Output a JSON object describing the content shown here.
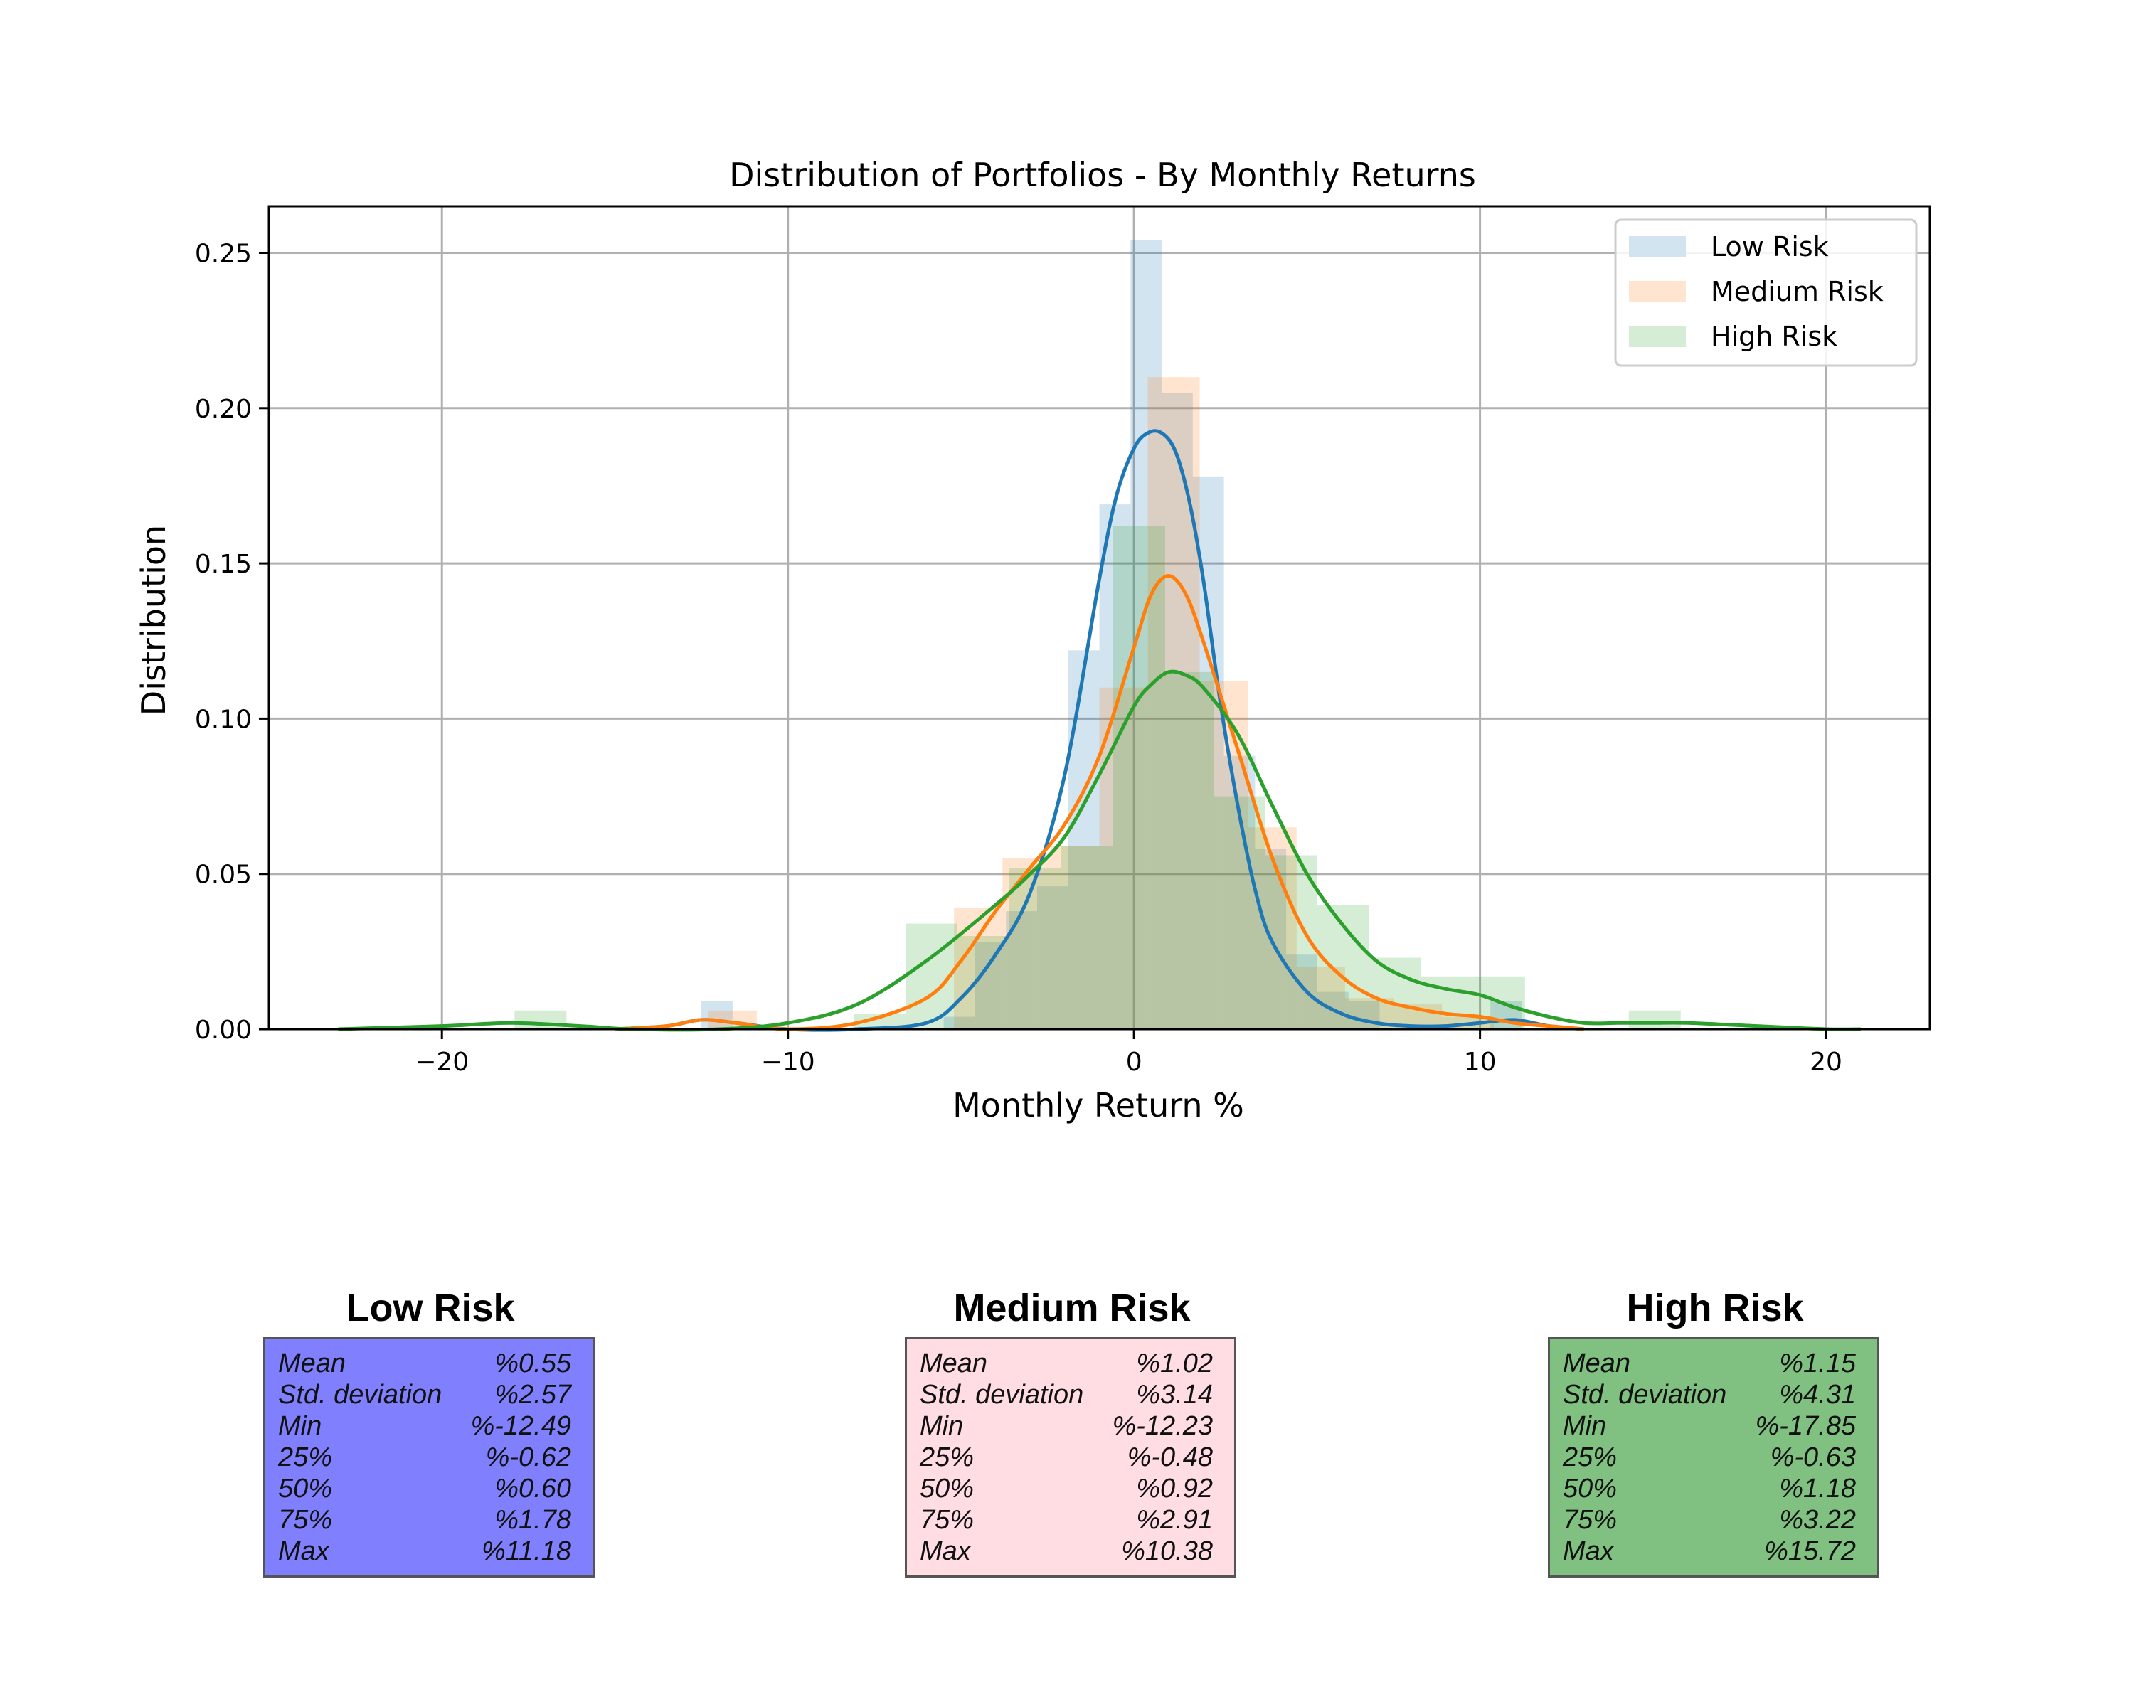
{
  "chart_data": {
    "type": "histogram+kde",
    "title": "Distribution of Portfolios - By Monthly Returns",
    "xlabel": "Monthly Return %",
    "ylabel": "Distribution",
    "xlim": [
      -25,
      23
    ],
    "ylim": [
      0,
      0.265
    ],
    "xticks": [
      -20,
      -10,
      0,
      10,
      20
    ],
    "xtick_labels": [
      "−20",
      "−10",
      "0",
      "10",
      "20"
    ],
    "yticks": [
      0,
      0.05,
      0.1,
      0.15,
      0.2,
      0.25
    ],
    "ytick_labels": [
      "0.00",
      "0.05",
      "0.10",
      "0.15",
      "0.20",
      "0.25"
    ],
    "grid": true,
    "legend_position": "top-right",
    "series": [
      {
        "name": "Low Risk",
        "color": "#1f77b4",
        "bins": [
          [
            -12.5,
            -11.6,
            0.009
          ],
          [
            -5.5,
            -4.6,
            0.004
          ],
          [
            -4.6,
            -3.7,
            0.028
          ],
          [
            -3.7,
            -2.8,
            0.038
          ],
          [
            -2.8,
            -1.9,
            0.046
          ],
          [
            -1.9,
            -1.0,
            0.122
          ],
          [
            -1.0,
            -0.1,
            0.169
          ],
          [
            -0.1,
            0.8,
            0.254
          ],
          [
            0.8,
            1.7,
            0.205
          ],
          [
            1.7,
            2.6,
            0.178
          ],
          [
            2.6,
            3.5,
            0.088
          ],
          [
            3.5,
            4.4,
            0.058
          ],
          [
            4.4,
            5.3,
            0.024
          ],
          [
            5.3,
            6.2,
            0.012
          ],
          [
            6.2,
            7.1,
            0.009
          ],
          [
            10.3,
            11.2,
            0.009
          ]
        ],
        "kde_x": [
          -15,
          -13.5,
          -12.5,
          -11.5,
          -10,
          -8,
          -6,
          -5,
          -4,
          -3,
          -2,
          -1,
          -0.5,
          0,
          0.4,
          0.8,
          1.2,
          1.6,
          2,
          2.5,
          3,
          3.5,
          4,
          5,
          6,
          7,
          8,
          9,
          10,
          11,
          12,
          13
        ],
        "kde_y": [
          0.0,
          0.001,
          0.003,
          0.002,
          0.0,
          0.0,
          0.002,
          0.01,
          0.024,
          0.044,
          0.082,
          0.145,
          0.172,
          0.187,
          0.192,
          0.192,
          0.186,
          0.17,
          0.145,
          0.105,
          0.072,
          0.045,
          0.028,
          0.012,
          0.005,
          0.002,
          0.001,
          0.001,
          0.002,
          0.003,
          0.001,
          0.0
        ]
      },
      {
        "name": "Medium Risk",
        "color": "#ff7f0e",
        "bins": [
          [
            -12.3,
            -10.9,
            0.006
          ],
          [
            -5.2,
            -3.8,
            0.039
          ],
          [
            -3.8,
            -2.4,
            0.055
          ],
          [
            -2.4,
            -1.0,
            0.059
          ],
          [
            -1.0,
            0.4,
            0.11
          ],
          [
            0.4,
            1.9,
            0.21
          ],
          [
            1.9,
            3.3,
            0.112
          ],
          [
            3.3,
            4.7,
            0.065
          ],
          [
            4.7,
            6.1,
            0.02
          ],
          [
            6.1,
            7.5,
            0.01
          ],
          [
            7.5,
            8.9,
            0.008
          ],
          [
            8.9,
            10.4,
            0.004
          ]
        ],
        "kde_x": [
          -15,
          -13.5,
          -12.5,
          -11.5,
          -10,
          -8,
          -6,
          -5,
          -4,
          -3,
          -2,
          -1,
          0,
          0.5,
          1,
          1.5,
          2,
          3,
          4,
          5,
          6,
          7,
          8,
          9,
          10,
          11,
          12,
          13
        ],
        "kde_y": [
          0.0,
          0.001,
          0.003,
          0.002,
          0.0,
          0.002,
          0.01,
          0.022,
          0.038,
          0.052,
          0.066,
          0.088,
          0.123,
          0.14,
          0.146,
          0.14,
          0.125,
          0.09,
          0.055,
          0.03,
          0.017,
          0.01,
          0.007,
          0.005,
          0.004,
          0.002,
          0.001,
          0.0
        ]
      },
      {
        "name": "High Risk",
        "color": "#2ca02c",
        "bins": [
          [
            -17.9,
            -16.4,
            0.006
          ],
          [
            -8.1,
            -6.6,
            0.005
          ],
          [
            -6.6,
            -5.1,
            0.034
          ],
          [
            -5.1,
            -3.6,
            0.03
          ],
          [
            -3.6,
            -2.1,
            0.052
          ],
          [
            -2.1,
            -0.6,
            0.059
          ],
          [
            -0.6,
            0.9,
            0.162
          ],
          [
            0.9,
            2.3,
            0.115
          ],
          [
            2.3,
            3.8,
            0.075
          ],
          [
            3.8,
            5.3,
            0.056
          ],
          [
            5.3,
            6.8,
            0.04
          ],
          [
            6.8,
            8.3,
            0.023
          ],
          [
            8.3,
            9.8,
            0.017
          ],
          [
            9.8,
            11.3,
            0.017
          ],
          [
            14.3,
            15.8,
            0.006
          ]
        ],
        "kde_x": [
          -23,
          -20,
          -18,
          -16,
          -14.5,
          -12,
          -10,
          -8,
          -6,
          -4,
          -3,
          -2,
          -1,
          0,
          0.5,
          1,
          1.5,
          2,
          3,
          4,
          5,
          6,
          7,
          8,
          9,
          10,
          11,
          12,
          13,
          14,
          15,
          16,
          18,
          20,
          21
        ],
        "kde_y": [
          0.0,
          0.001,
          0.002,
          0.001,
          0.0,
          0.0,
          0.002,
          0.008,
          0.022,
          0.04,
          0.05,
          0.062,
          0.082,
          0.104,
          0.111,
          0.115,
          0.114,
          0.11,
          0.095,
          0.072,
          0.05,
          0.034,
          0.022,
          0.016,
          0.013,
          0.011,
          0.007,
          0.004,
          0.002,
          0.002,
          0.002,
          0.002,
          0.001,
          0.0,
          0.0
        ]
      }
    ]
  },
  "stats": [
    {
      "title": "Low Risk",
      "box_color": "#8080ff",
      "rows": [
        {
          "label": "Mean",
          "value": "%0.55"
        },
        {
          "label": "Std. deviation",
          "value": "%2.57"
        },
        {
          "label": "Min",
          "value": "%-12.49"
        },
        {
          "label": "25%",
          "value": "%-0.62"
        },
        {
          "label": "50%",
          "value": "%0.60"
        },
        {
          "label": "75%",
          "value": "%1.78"
        },
        {
          "label": "Max",
          "value": "%11.18"
        }
      ]
    },
    {
      "title": "Medium Risk",
      "box_color": "#ffdde3",
      "rows": [
        {
          "label": "Mean",
          "value": "%1.02"
        },
        {
          "label": "Std. deviation",
          "value": "%3.14"
        },
        {
          "label": "Min",
          "value": "%-12.23"
        },
        {
          "label": "25%",
          "value": "%-0.48"
        },
        {
          "label": "50%",
          "value": "%0.92"
        },
        {
          "label": "75%",
          "value": "%2.91"
        },
        {
          "label": "Max",
          "value": "%10.38"
        }
      ]
    },
    {
      "title": "High Risk",
      "box_color": "#80c080",
      "rows": [
        {
          "label": "Mean",
          "value": "%1.15"
        },
        {
          "label": "Std. deviation",
          "value": "%4.31"
        },
        {
          "label": "Min",
          "value": "%-17.85"
        },
        {
          "label": "25%",
          "value": "%-0.63"
        },
        {
          "label": "50%",
          "value": "%1.18"
        },
        {
          "label": "75%",
          "value": "%3.22"
        },
        {
          "label": "Max",
          "value": "%15.72"
        }
      ]
    }
  ]
}
